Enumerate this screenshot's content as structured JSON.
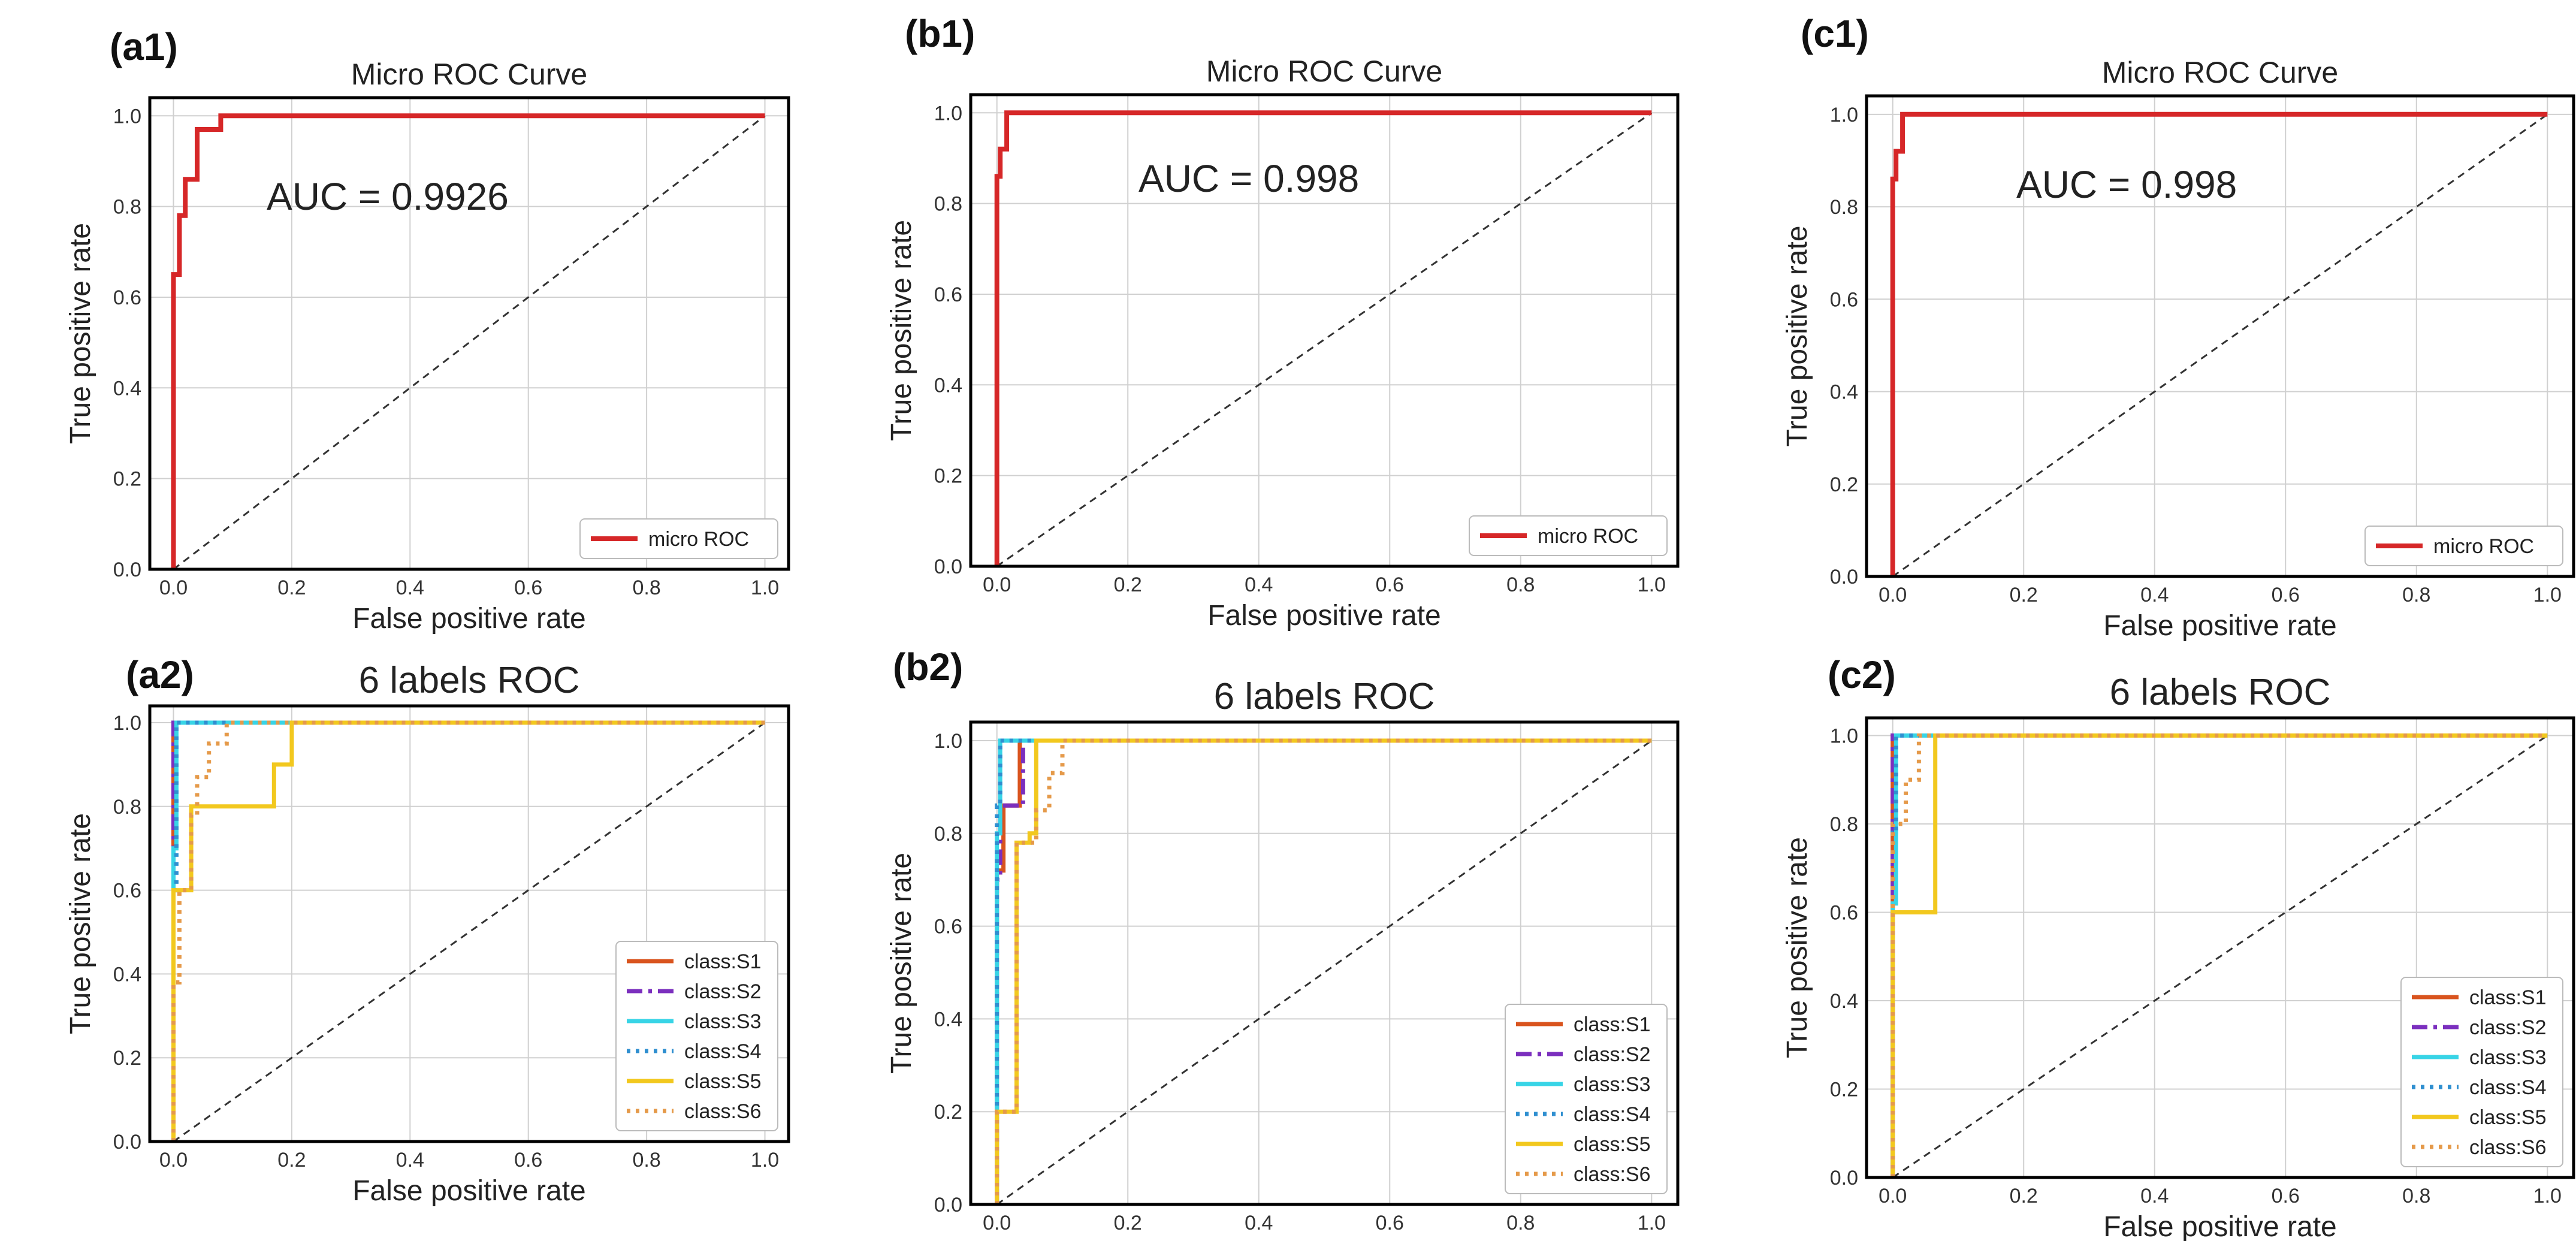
{
  "chart_data": [
    {
      "panel": "(a1)",
      "type": "line",
      "title": "Micro ROC Curve",
      "xlabel": "False positive rate",
      "ylabel": "True positive rate",
      "xlim": [
        -0.04,
        1.04
      ],
      "ylim": [
        0.0,
        1.04
      ],
      "xticks": [
        "0.0",
        "0.2",
        "0.4",
        "0.6",
        "0.8",
        "1.0"
      ],
      "yticks": [
        "0.0",
        "0.2",
        "0.4",
        "0.6",
        "0.8",
        "1.0"
      ],
      "annotation": "AUC = 0.9926",
      "legend_position": "lower-right",
      "series": [
        {
          "name": "micro ROC",
          "color": "#d62728",
          "style": "solid",
          "x": [
            0,
            0,
            0.01,
            0.01,
            0.02,
            0.02,
            0.04,
            0.04,
            0.06,
            0.06,
            0.08,
            0.08,
            1.0
          ],
          "y": [
            0,
            0.65,
            0.65,
            0.78,
            0.78,
            0.86,
            0.86,
            0.97,
            0.97,
            0.97,
            0.97,
            1.0,
            1.0
          ]
        }
      ]
    },
    {
      "panel": "(b1)",
      "type": "line",
      "title": "Micro ROC Curve",
      "xlabel": "False positive rate",
      "ylabel": "True positive rate",
      "xlim": [
        -0.04,
        1.04
      ],
      "ylim": [
        0.0,
        1.04
      ],
      "xticks": [
        "0.0",
        "0.2",
        "0.4",
        "0.6",
        "0.8",
        "1.0"
      ],
      "yticks": [
        "0.0",
        "0.2",
        "0.4",
        "0.6",
        "0.8",
        "1.0"
      ],
      "annotation": "AUC = 0.998",
      "legend_position": "lower-right",
      "series": [
        {
          "name": "micro ROC",
          "color": "#d62728",
          "style": "solid",
          "x": [
            0,
            0,
            0.005,
            0.005,
            0.015,
            0.015,
            1.0
          ],
          "y": [
            0,
            0.86,
            0.86,
            0.92,
            0.92,
            1.0,
            1.0
          ]
        }
      ]
    },
    {
      "panel": "(c1)",
      "type": "line",
      "title": "Micro ROC Curve",
      "xlabel": "False positive rate",
      "ylabel": "True positive rate",
      "xlim": [
        -0.04,
        1.04
      ],
      "ylim": [
        0.0,
        1.04
      ],
      "xticks": [
        "0.0",
        "0.2",
        "0.4",
        "0.6",
        "0.8",
        "1.0"
      ],
      "yticks": [
        "0.0",
        "0.2",
        "0.4",
        "0.6",
        "0.8",
        "1.0"
      ],
      "annotation": "AUC = 0.998",
      "legend_position": "lower-right",
      "series": [
        {
          "name": "micro ROC",
          "color": "#d62728",
          "style": "solid",
          "x": [
            0,
            0,
            0.005,
            0.005,
            0.015,
            0.015,
            1.0
          ],
          "y": [
            0,
            0.86,
            0.86,
            0.92,
            0.92,
            1.0,
            1.0
          ]
        }
      ]
    },
    {
      "panel": "(a2)",
      "type": "line",
      "title": "6 labels ROC",
      "xlabel": "False positive rate",
      "ylabel": "True positive rate",
      "xlim": [
        -0.04,
        1.04
      ],
      "ylim": [
        0.0,
        1.04
      ],
      "xticks": [
        "0.0",
        "0.2",
        "0.4",
        "0.6",
        "0.8",
        "1.0"
      ],
      "yticks": [
        "0.0",
        "0.2",
        "0.4",
        "0.6",
        "0.8",
        "1.0"
      ],
      "legend_position": "lower-right",
      "series": [
        {
          "name": "class:S1",
          "color": "#d9541e",
          "style": "solid",
          "x": [
            0,
            0,
            1.0
          ],
          "y": [
            0,
            1.0,
            1.0
          ]
        },
        {
          "name": "class:S2",
          "color": "#7b2fbe",
          "style": "dashdot",
          "x": [
            0,
            0,
            1.0
          ],
          "y": [
            0,
            1.0,
            1.0
          ]
        },
        {
          "name": "class:S3",
          "color": "#38d4e6",
          "style": "solid",
          "x": [
            0,
            0,
            0.005,
            0.005,
            1.0
          ],
          "y": [
            0,
            0.7,
            0.7,
            1.0,
            1.0
          ]
        },
        {
          "name": "class:S4",
          "color": "#2f8fd0",
          "style": "dotted",
          "x": [
            0,
            0,
            0.005,
            0.005,
            1.0
          ],
          "y": [
            0,
            0.6,
            0.6,
            1.0,
            1.0
          ]
        },
        {
          "name": "class:S5",
          "color": "#f2c81e",
          "style": "solid",
          "x": [
            0,
            0,
            0.03,
            0.03,
            0.17,
            0.17,
            0.2,
            0.2,
            1.0
          ],
          "y": [
            0,
            0.6,
            0.6,
            0.8,
            0.8,
            0.9,
            0.9,
            1.0,
            1.0
          ]
        },
        {
          "name": "class:S6",
          "color": "#e59a4a",
          "style": "dotted",
          "x": [
            0,
            0,
            0.01,
            0.01,
            0.03,
            0.03,
            0.04,
            0.04,
            0.06,
            0.06,
            0.09,
            0.09,
            1.0
          ],
          "y": [
            0,
            0.38,
            0.38,
            0.6,
            0.6,
            0.78,
            0.78,
            0.87,
            0.87,
            0.95,
            0.95,
            1.0,
            1.0
          ]
        }
      ]
    },
    {
      "panel": "(b2)",
      "type": "line",
      "title": "6 labels ROC",
      "xlabel": "False positive rate",
      "ylabel": "True positive rate",
      "xlim": [
        -0.04,
        1.04
      ],
      "ylim": [
        0.0,
        1.04
      ],
      "xticks": [
        "0.0",
        "0.2",
        "0.4",
        "0.6",
        "0.8",
        "1.0"
      ],
      "yticks": [
        "0.0",
        "0.2",
        "0.4",
        "0.6",
        "0.8",
        "1.0"
      ],
      "legend_position": "lower-right",
      "series": [
        {
          "name": "class:S1",
          "color": "#d9541e",
          "style": "solid",
          "x": [
            0,
            0,
            0.01,
            0.01,
            0.035,
            0.035,
            1.0
          ],
          "y": [
            0,
            0.72,
            0.72,
            0.86,
            0.86,
            1.0,
            1.0
          ]
        },
        {
          "name": "class:S2",
          "color": "#7b2fbe",
          "style": "dashdot",
          "x": [
            0,
            0,
            0.005,
            0.005,
            0.04,
            0.04,
            1.0
          ],
          "y": [
            0,
            0.7,
            0.7,
            0.86,
            0.86,
            1.0,
            1.0
          ]
        },
        {
          "name": "class:S3",
          "color": "#38d4e6",
          "style": "solid",
          "x": [
            0,
            0,
            0.005,
            0.005,
            1.0
          ],
          "y": [
            0,
            0.8,
            0.8,
            1.0,
            1.0
          ]
        },
        {
          "name": "class:S4",
          "color": "#2f8fd0",
          "style": "dotted",
          "x": [
            0,
            0,
            0.005,
            0.005,
            1.0
          ],
          "y": [
            0,
            0.86,
            0.86,
            1.0,
            1.0
          ]
        },
        {
          "name": "class:S5",
          "color": "#f2c81e",
          "style": "solid",
          "x": [
            0,
            0,
            0.01,
            0.01,
            0.03,
            0.03,
            0.05,
            0.05,
            0.06,
            0.06,
            1.0
          ],
          "y": [
            0,
            0.2,
            0.2,
            0.2,
            0.2,
            0.78,
            0.78,
            0.8,
            0.8,
            1.0,
            1.0
          ]
        },
        {
          "name": "class:S6",
          "color": "#e59a4a",
          "style": "dotted",
          "x": [
            0,
            0,
            0.03,
            0.03,
            0.06,
            0.06,
            0.08,
            0.08,
            0.1,
            0.1,
            1.0
          ],
          "y": [
            0,
            0.2,
            0.2,
            0.78,
            0.78,
            0.85,
            0.85,
            0.93,
            0.93,
            1.0,
            1.0
          ]
        }
      ]
    },
    {
      "panel": "(c2)",
      "type": "line",
      "title": "6 labels ROC",
      "xlabel": "False positive rate",
      "ylabel": "True positive rate",
      "xlim": [
        -0.04,
        1.04
      ],
      "ylim": [
        0.0,
        1.04
      ],
      "xticks": [
        "0.0",
        "0.2",
        "0.4",
        "0.6",
        "0.8",
        "1.0"
      ],
      "yticks": [
        "0.0",
        "0.2",
        "0.4",
        "0.6",
        "0.8",
        "1.0"
      ],
      "legend_position": "lower-right",
      "series": [
        {
          "name": "class:S1",
          "color": "#d9541e",
          "style": "solid",
          "x": [
            0,
            0,
            1.0
          ],
          "y": [
            0,
            1.0,
            1.0
          ]
        },
        {
          "name": "class:S2",
          "color": "#7b2fbe",
          "style": "dashdot",
          "x": [
            0,
            0,
            1.0
          ],
          "y": [
            0,
            1.0,
            1.0
          ]
        },
        {
          "name": "class:S3",
          "color": "#38d4e6",
          "style": "solid",
          "x": [
            0,
            0,
            0.005,
            0.005,
            1.0
          ],
          "y": [
            0,
            0.62,
            0.62,
            1.0,
            1.0
          ]
        },
        {
          "name": "class:S4",
          "color": "#2f8fd0",
          "style": "dotted",
          "x": [
            0,
            0,
            0.005,
            0.005,
            1.0
          ],
          "y": [
            0,
            0.78,
            0.78,
            1.0,
            1.0
          ]
        },
        {
          "name": "class:S5",
          "color": "#f2c81e",
          "style": "solid",
          "x": [
            0,
            0,
            0.005,
            0.005,
            0.065,
            0.065,
            1.0
          ],
          "y": [
            0,
            0.6,
            0.6,
            0.6,
            0.6,
            1.0,
            1.0
          ]
        },
        {
          "name": "class:S6",
          "color": "#e59a4a",
          "style": "dotted",
          "x": [
            0,
            0,
            0.02,
            0.02,
            0.04,
            0.04,
            1.0
          ],
          "y": [
            0,
            0.8,
            0.8,
            0.9,
            0.9,
            1.0,
            1.0
          ]
        }
      ]
    }
  ]
}
